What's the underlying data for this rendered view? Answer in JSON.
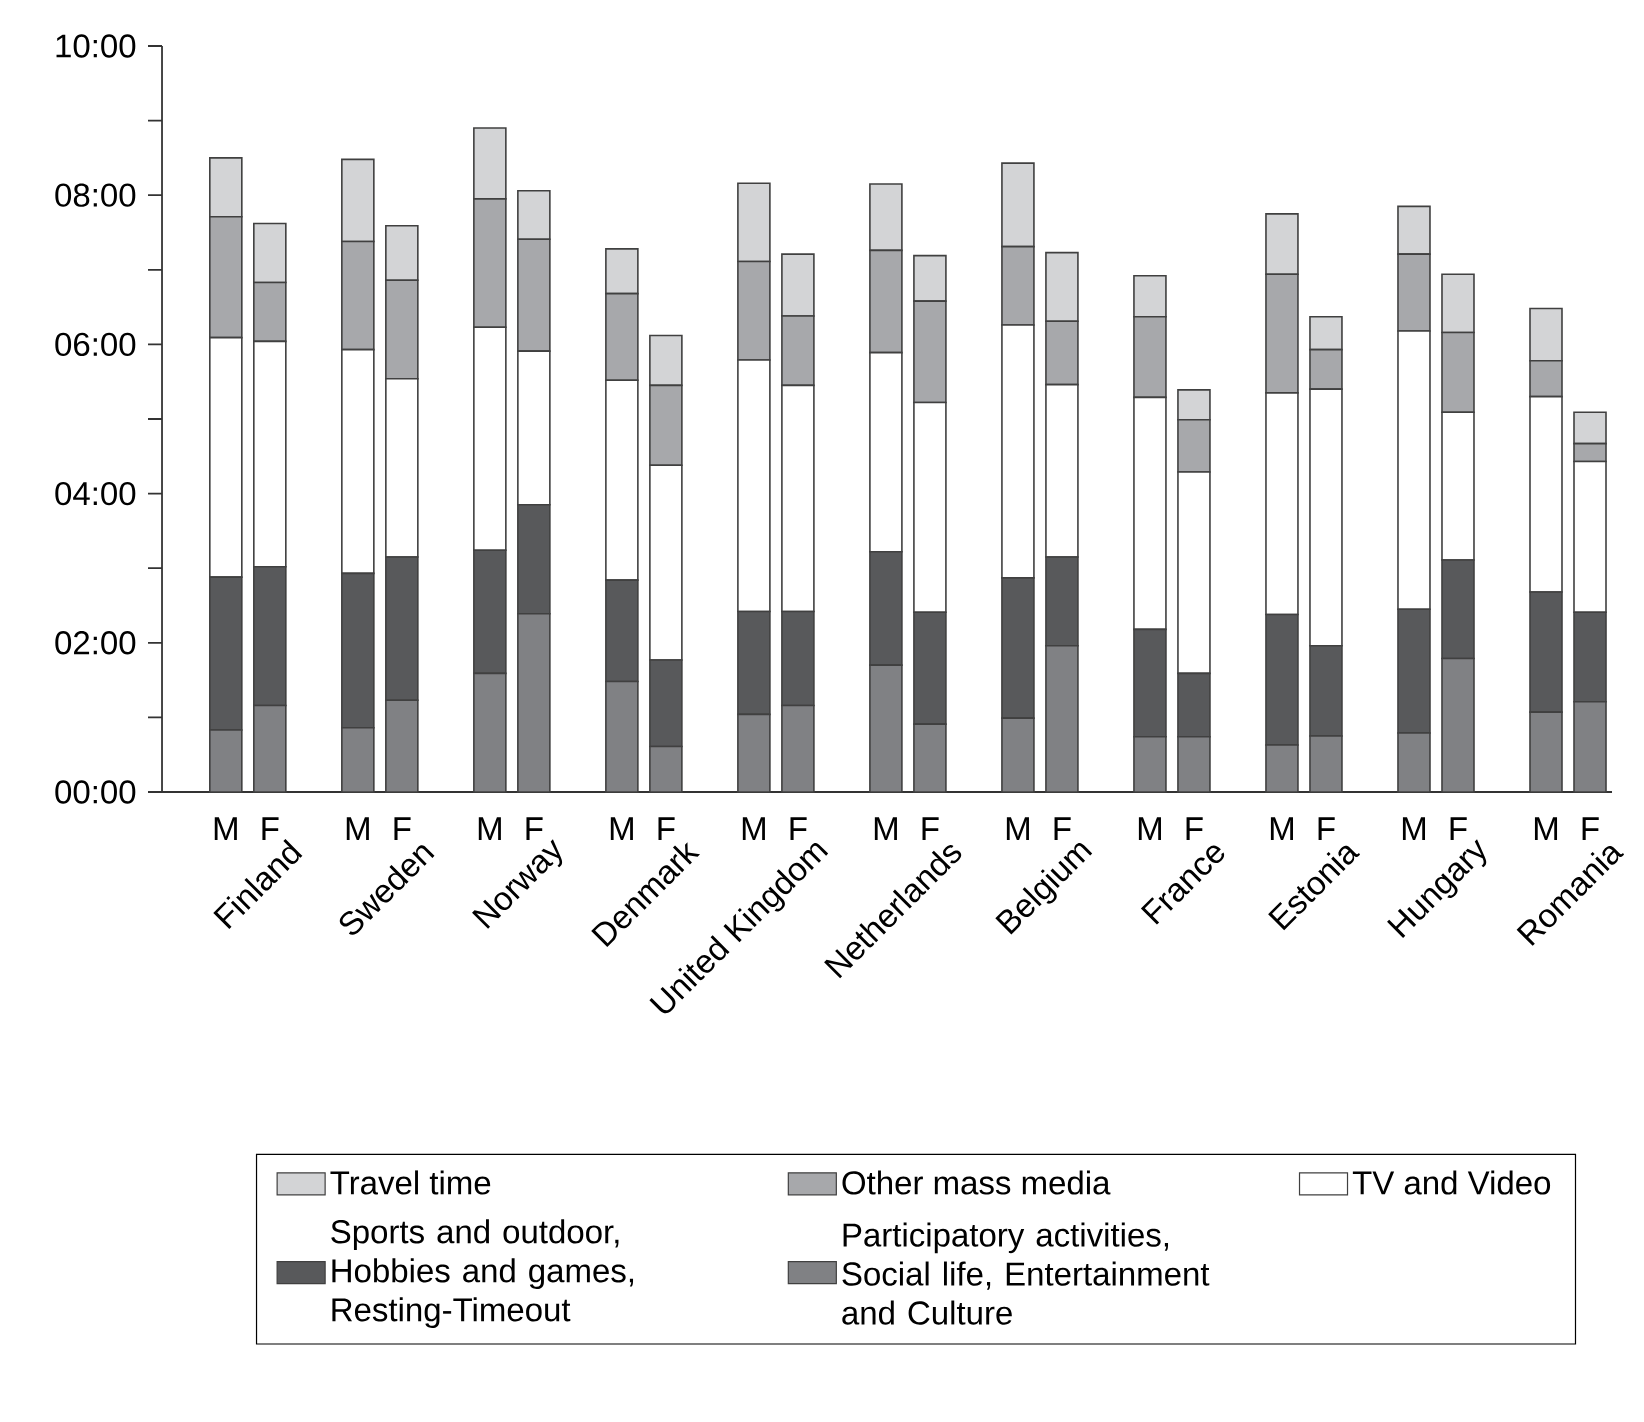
{
  "chart_data": {
    "type": "bar",
    "stacked": true,
    "categories": [
      "M",
      "F",
      "M",
      "F",
      "M",
      "F",
      "M",
      "F",
      "M",
      "F",
      "M",
      "F",
      "M",
      "F",
      "M",
      "F",
      "M",
      "F",
      "M",
      "F",
      "M",
      "F"
    ],
    "annotations": [
      "Finland",
      "Sweden",
      "Norway",
      "Denmark",
      "United Kingdom",
      "Netherlands",
      "Belgium",
      "France",
      "Estonia",
      "Hungary",
      "Romania"
    ],
    "series": [
      {
        "name": "Participatory activities, Social life, Entertainment and Culture",
        "color": "#808184",
        "values": [
          0.83,
          1.16,
          0.86,
          1.23,
          1.59,
          2.39,
          1.48,
          0.61,
          1.04,
          1.16,
          1.7,
          0.91,
          0.99,
          1.96,
          0.74,
          0.74,
          0.63,
          0.75,
          0.79,
          1.79,
          1.07,
          1.21
        ]
      },
      {
        "name": "Sports and outdoor, Hobbies and games, Resting-Timeout",
        "color": "#58595b",
        "values": [
          2.05,
          1.86,
          2.07,
          1.92,
          1.65,
          1.46,
          1.36,
          1.16,
          1.38,
          1.26,
          1.52,
          1.5,
          1.88,
          1.19,
          1.44,
          0.85,
          1.75,
          1.21,
          1.66,
          1.32,
          1.61,
          1.2
        ]
      },
      {
        "name": "TV and Video",
        "color": "#ffffff",
        "values": [
          3.21,
          3.02,
          3.0,
          2.39,
          2.99,
          2.06,
          2.68,
          2.61,
          3.37,
          3.03,
          2.67,
          2.81,
          3.39,
          2.31,
          3.11,
          2.7,
          2.97,
          3.44,
          3.73,
          1.98,
          2.62,
          2.02
        ]
      },
      {
        "name": "Other mass media",
        "color": "#a7a8ab",
        "values": [
          1.62,
          0.79,
          1.45,
          1.32,
          1.72,
          1.5,
          1.16,
          1.07,
          1.32,
          0.93,
          1.37,
          1.36,
          1.05,
          0.85,
          1.08,
          0.7,
          1.59,
          0.53,
          1.03,
          1.07,
          0.48,
          0.24
        ]
      },
      {
        "name": "Travel time",
        "color": "#d3d4d6",
        "values": [
          0.79,
          0.79,
          1.1,
          0.73,
          0.95,
          0.65,
          0.6,
          0.67,
          1.05,
          0.83,
          0.89,
          0.61,
          1.12,
          0.92,
          0.55,
          0.4,
          0.81,
          0.44,
          0.64,
          0.78,
          0.7,
          0.42
        ]
      }
    ],
    "ylim": [
      0,
      10
    ],
    "yticks": [
      {
        "value": 0,
        "label": "00:00"
      },
      {
        "value": 1,
        "label": null
      },
      {
        "value": 2,
        "label": "02:00"
      },
      {
        "value": 3,
        "label": null
      },
      {
        "value": 4,
        "label": "04:00"
      },
      {
        "value": 5,
        "label": null
      },
      {
        "value": 6,
        "label": "06:00"
      },
      {
        "value": 7,
        "label": null
      },
      {
        "value": 8,
        "label": "08:00"
      },
      {
        "value": 9,
        "label": null
      },
      {
        "value": 10,
        "label": "10:00"
      }
    ],
    "legend": "bottom"
  }
}
